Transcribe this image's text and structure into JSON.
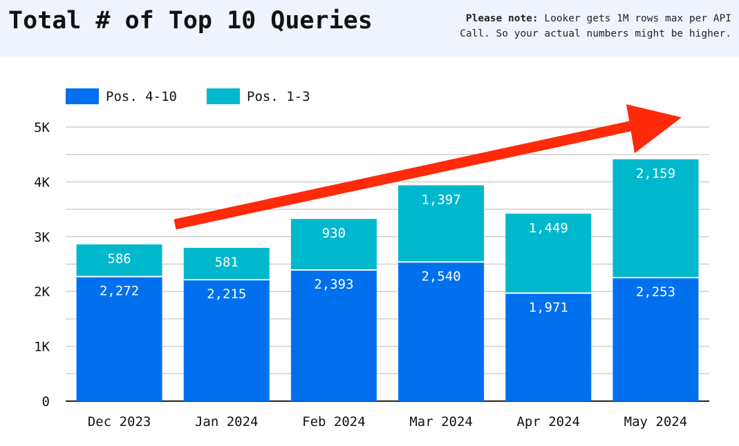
{
  "header": {
    "title": "Total # of Top 10 Queries",
    "note_bold": "Please note:",
    "note_text": " Looker gets 1M rows max per API Call. So your actual numbers might be higher."
  },
  "chart_data": {
    "type": "bar",
    "stacked": true,
    "categories": [
      "Dec 2023",
      "Jan 2024",
      "Feb 2024",
      "Mar 2024",
      "Apr 2024",
      "May 2024"
    ],
    "series": [
      {
        "name": "Pos. 4-10",
        "color": "#0070ee",
        "values": [
          2272,
          2215,
          2393,
          2540,
          1971,
          2253
        ],
        "labels": [
          "2,272",
          "2,215",
          "2,393",
          "2,540",
          "1,971",
          "2,253"
        ]
      },
      {
        "name": "Pos. 1-3",
        "color": "#00b8cc",
        "values": [
          586,
          581,
          930,
          1397,
          1449,
          2159
        ],
        "labels": [
          "586",
          "581",
          "930",
          "1,397",
          "1,449",
          "2,159"
        ]
      }
    ],
    "ylim": [
      0,
      5000
    ],
    "yticks": [
      0,
      1000,
      2000,
      3000,
      4000,
      5000
    ],
    "ytick_labels": [
      "0",
      "1K",
      "2K",
      "3K",
      "4K",
      "5K"
    ],
    "grid": true,
    "legend_position": "top-left",
    "annotation": {
      "type": "arrow",
      "color": "#ff2a0a",
      "direction": "up-right"
    }
  }
}
